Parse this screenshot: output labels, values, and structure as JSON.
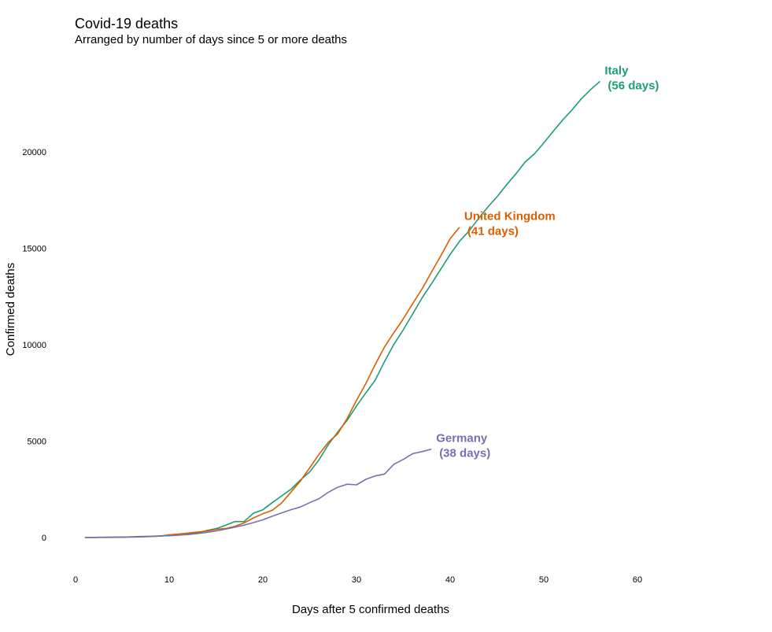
{
  "chart_data": {
    "type": "line",
    "title": "Covid-19 deaths",
    "subtitle": "Arranged by number of days since 5 or more deaths",
    "xlabel": "Days after 5 confirmed deaths",
    "ylabel": "Confirmed deaths",
    "xlim": [
      0,
      60
    ],
    "ylim": [
      0,
      24000
    ],
    "xticks": [
      0,
      10,
      20,
      30,
      40,
      50,
      60
    ],
    "yticks": [
      0,
      5000,
      10000,
      15000,
      20000
    ],
    "grid": false,
    "series": [
      {
        "name": "Italy",
        "label_lines": [
          "Italy",
          "(56 days)"
        ],
        "color": "#1b9e77",
        "x": [
          1,
          2,
          3,
          4,
          5,
          6,
          7,
          8,
          9,
          10,
          11,
          12,
          13,
          14,
          15,
          16,
          17,
          18,
          19,
          20,
          21,
          22,
          23,
          24,
          25,
          26,
          27,
          28,
          29,
          30,
          31,
          32,
          33,
          34,
          35,
          36,
          37,
          38,
          39,
          40,
          41,
          42,
          43,
          44,
          45,
          46,
          47,
          48,
          49,
          50,
          51,
          52,
          53,
          54,
          55,
          56
        ],
        "y": [
          7,
          10,
          12,
          17,
          21,
          29,
          34,
          52,
          79,
          107,
          148,
          197,
          233,
          366,
          463,
          631,
          827,
          827,
          1266,
          1441,
          1809,
          2158,
          2503,
          2978,
          3405,
          4032,
          4825,
          5476,
          6077,
          6820,
          7503,
          8165,
          9134,
          10023,
          10779,
          11591,
          12428,
          13155,
          13915,
          14681,
          15362,
          15887,
          16523,
          17127,
          17669,
          18279,
          18849,
          19468,
          19899,
          20465,
          21067,
          21645,
          22170,
          22745,
          23227,
          23660
        ]
      },
      {
        "name": "United Kingdom",
        "label_lines": [
          "United Kingdom",
          "(41 days)"
        ],
        "color": "#d95f02",
        "x": [
          1,
          2,
          3,
          4,
          5,
          6,
          7,
          8,
          9,
          10,
          11,
          12,
          13,
          14,
          15,
          16,
          17,
          18,
          19,
          20,
          21,
          22,
          23,
          24,
          25,
          26,
          27,
          28,
          29,
          30,
          31,
          32,
          33,
          34,
          35,
          36,
          37,
          38,
          39,
          40,
          41
        ],
        "y": [
          6,
          8,
          8,
          10,
          21,
          35,
          56,
          56,
          72,
          138,
          178,
          234,
          282,
          336,
          423,
          466,
          580,
          761,
          1021,
          1231,
          1411,
          1793,
          2357,
          2926,
          3611,
          4320,
          4943,
          5385,
          6171,
          7111,
          7993,
          8974,
          9892,
          10629,
          11347,
          12129,
          12894,
          13759,
          14607,
          15498,
          16095
        ]
      },
      {
        "name": "Germany",
        "label_lines": [
          "Germany",
          "(38 days)"
        ],
        "color": "#7570b3",
        "x": [
          1,
          2,
          3,
          4,
          5,
          6,
          7,
          8,
          9,
          10,
          11,
          12,
          13,
          14,
          15,
          16,
          17,
          18,
          19,
          20,
          21,
          22,
          23,
          24,
          25,
          26,
          27,
          28,
          29,
          30,
          31,
          32,
          33,
          34,
          35,
          36,
          37,
          38
        ],
        "y": [
          7,
          9,
          11,
          17,
          24,
          28,
          44,
          67,
          84,
          94,
          123,
          157,
          206,
          267,
          342,
          433,
          533,
          645,
          775,
          920,
          1107,
          1275,
          1444,
          1584,
          1810,
          2016,
          2349,
          2607,
          2767,
          2736,
          3022,
          3194,
          3294,
          3804,
          4052,
          4352,
          4459,
          4586
        ]
      }
    ]
  }
}
